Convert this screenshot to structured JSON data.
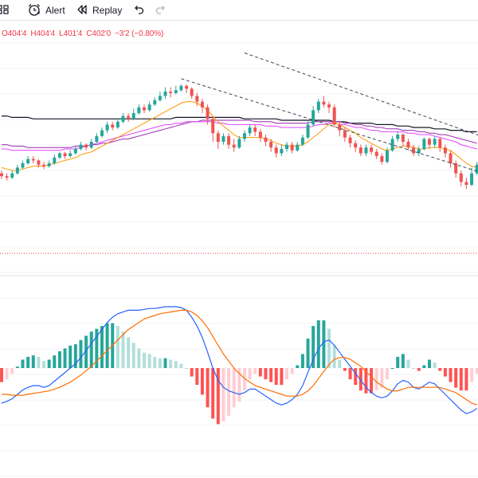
{
  "toolbar": {
    "alert_label": "Alert",
    "replay_label": "Replay",
    "icons": [
      "grid-icon",
      "alarm-clock-icon",
      "replay-icon",
      "undo-icon",
      "redo-icon"
    ]
  },
  "legend": {
    "open": "O404'4",
    "high": "H404'4",
    "low": "L401'4",
    "close": "C402'0",
    "change": "−3'2 (−0.80%)"
  },
  "colors": {
    "up": "#26a69a",
    "down": "#ef5350",
    "hist_up_strong": "#26a69a",
    "hist_up_weak": "#b2dfdb",
    "hist_down_strong": "#ff5252",
    "hist_down_weak": "#ffcdd2",
    "macd_line": "#2962ff",
    "signal_line": "#ff6d00",
    "ma_short": "#ff9800",
    "ma_mid": "#9c27b0",
    "ma_magenta": "#e040fb",
    "ma_long": "#131722",
    "grid": "#f0f3fa",
    "trendline": "#434651",
    "price_line": "#f23645"
  },
  "chart_data": {
    "type": "candlestick",
    "note_values": "normalized price levels 0-100 (no axis printed)",
    "candles": [
      [
        38,
        36,
        40,
        34
      ],
      [
        36,
        35,
        38,
        33
      ],
      [
        35,
        38,
        40,
        34
      ],
      [
        38,
        42,
        44,
        37
      ],
      [
        42,
        45,
        47,
        41
      ],
      [
        45,
        48,
        50,
        44
      ],
      [
        48,
        47,
        50,
        45
      ],
      [
        47,
        44,
        48,
        42
      ],
      [
        44,
        43,
        46,
        41
      ],
      [
        43,
        45,
        47,
        42
      ],
      [
        45,
        49,
        51,
        44
      ],
      [
        49,
        52,
        53,
        48
      ],
      [
        52,
        50,
        53,
        48
      ],
      [
        50,
        52,
        54,
        49
      ],
      [
        52,
        55,
        57,
        51
      ],
      [
        55,
        58,
        60,
        54
      ],
      [
        58,
        56,
        59,
        54
      ],
      [
        56,
        60,
        62,
        55
      ],
      [
        60,
        64,
        66,
        59
      ],
      [
        64,
        68,
        70,
        63
      ],
      [
        68,
        72,
        74,
        66
      ],
      [
        72,
        70,
        74,
        68
      ],
      [
        70,
        74,
        76,
        69
      ],
      [
        74,
        78,
        80,
        73
      ],
      [
        78,
        76,
        80,
        74
      ],
      [
        76,
        80,
        83,
        75
      ],
      [
        80,
        84,
        86,
        79
      ],
      [
        84,
        82,
        86,
        80
      ],
      [
        82,
        86,
        88,
        81
      ],
      [
        86,
        89,
        91,
        85
      ],
      [
        89,
        92,
        95,
        88
      ],
      [
        92,
        95,
        98,
        90
      ],
      [
        95,
        94,
        98,
        91
      ],
      [
        94,
        96,
        99,
        93
      ],
      [
        96,
        99,
        100,
        95
      ],
      [
        99,
        97,
        100,
        94
      ],
      [
        97,
        92,
        98,
        90
      ],
      [
        92,
        88,
        94,
        85
      ],
      [
        88,
        84,
        90,
        80
      ],
      [
        84,
        76,
        86,
        72
      ],
      [
        76,
        66,
        78,
        60
      ],
      [
        66,
        60,
        68,
        55
      ],
      [
        60,
        64,
        66,
        58
      ],
      [
        64,
        58,
        66,
        55
      ],
      [
        58,
        56,
        62,
        53
      ],
      [
        56,
        62,
        64,
        55
      ],
      [
        62,
        66,
        68,
        60
      ],
      [
        66,
        70,
        72,
        64
      ],
      [
        70,
        67,
        72,
        64
      ],
      [
        67,
        63,
        69,
        60
      ],
      [
        63,
        60,
        65,
        57
      ],
      [
        60,
        56,
        62,
        53
      ],
      [
        56,
        52,
        58,
        49
      ],
      [
        52,
        55,
        58,
        50
      ],
      [
        55,
        58,
        60,
        53
      ],
      [
        58,
        54,
        60,
        52
      ],
      [
        54,
        58,
        60,
        53
      ],
      [
        58,
        63,
        65,
        57
      ],
      [
        63,
        72,
        75,
        62
      ],
      [
        72,
        82,
        85,
        71
      ],
      [
        82,
        88,
        90,
        80
      ],
      [
        88,
        86,
        92,
        84
      ],
      [
        86,
        84,
        88,
        80
      ],
      [
        84,
        72,
        86,
        70
      ],
      [
        72,
        68,
        74,
        64
      ],
      [
        68,
        63,
        70,
        60
      ],
      [
        63,
        59,
        65,
        56
      ],
      [
        59,
        56,
        61,
        53
      ],
      [
        56,
        52,
        58,
        50
      ],
      [
        52,
        56,
        58,
        50
      ],
      [
        56,
        53,
        58,
        51
      ],
      [
        53,
        50,
        55,
        48
      ],
      [
        50,
        46,
        52,
        44
      ],
      [
        46,
        54,
        56,
        45
      ],
      [
        54,
        62,
        64,
        53
      ],
      [
        62,
        65,
        67,
        60
      ],
      [
        65,
        60,
        66,
        57
      ],
      [
        60,
        56,
        62,
        54
      ],
      [
        56,
        52,
        58,
        50
      ],
      [
        52,
        55,
        57,
        50
      ],
      [
        55,
        62,
        63,
        54
      ],
      [
        62,
        58,
        63,
        55
      ],
      [
        58,
        62,
        64,
        56
      ],
      [
        62,
        56,
        63,
        53
      ],
      [
        56,
        52,
        58,
        49
      ],
      [
        52,
        45,
        54,
        42
      ],
      [
        45,
        38,
        47,
        35
      ],
      [
        38,
        32,
        40,
        29
      ],
      [
        32,
        30,
        35,
        27
      ],
      [
        30,
        38,
        42,
        29
      ],
      [
        38,
        44,
        46,
        37
      ]
    ],
    "moving_averages": [
      {
        "color": "ma_long",
        "values": [
          78,
          78,
          77,
          77,
          77,
          77,
          76,
          76,
          76,
          76,
          76,
          76,
          76,
          76,
          76,
          76,
          76,
          76,
          76,
          76,
          76,
          76,
          76,
          76,
          76,
          76,
          76,
          76,
          76,
          76,
          76,
          76,
          76,
          77,
          77,
          77,
          77,
          77,
          77,
          77,
          77,
          77,
          77,
          77,
          77,
          77,
          76,
          76,
          76,
          76,
          76,
          76,
          76,
          75,
          75,
          75,
          75,
          75,
          75,
          75,
          75,
          75,
          75,
          74,
          74,
          74,
          73,
          73,
          73,
          73,
          73,
          72,
          72,
          72,
          72,
          71,
          71,
          71,
          70,
          70,
          70,
          70,
          69,
          69,
          69,
          68,
          68,
          68,
          67,
          67,
          67
        ]
      },
      {
        "color": "ma_mid",
        "values": [
          58,
          58,
          57,
          57,
          57,
          56,
          56,
          56,
          56,
          56,
          56,
          56,
          56,
          56,
          57,
          57,
          57,
          58,
          58,
          59,
          59,
          60,
          61,
          62,
          62,
          63,
          64,
          65,
          66,
          67,
          68,
          69,
          70,
          71,
          72,
          73,
          74,
          74,
          75,
          75,
          75,
          75,
          75,
          75,
          75,
          75,
          75,
          75,
          74,
          74,
          74,
          74,
          73,
          73,
          73,
          73,
          73,
          73,
          73,
          74,
          74,
          74,
          74,
          74,
          74,
          73,
          73,
          72,
          72,
          71,
          71,
          70,
          70,
          69,
          69,
          69,
          68,
          68,
          68,
          67,
          67,
          66,
          66,
          65,
          65,
          64,
          63,
          62,
          61,
          60,
          59
        ]
      },
      {
        "color": "ma_magenta",
        "values": [
          55,
          55,
          54,
          54,
          54,
          54,
          54,
          54,
          54,
          54,
          54,
          54,
          55,
          55,
          55,
          56,
          57,
          58,
          59,
          60,
          61,
          62,
          63,
          64,
          65,
          66,
          67,
          68,
          69,
          70,
          71,
          72,
          72,
          73,
          73,
          74,
          74,
          74,
          74,
          74,
          74,
          73,
          73,
          72,
          72,
          72,
          72,
          72,
          72,
          72,
          71,
          71,
          71,
          70,
          70,
          70,
          70,
          70,
          70,
          71,
          72,
          72,
          73,
          73,
          72,
          72,
          71,
          70,
          70,
          69,
          68,
          68,
          67,
          67,
          67,
          67,
          67,
          66,
          66,
          65,
          65,
          65,
          64,
          63,
          62,
          61,
          60,
          58,
          57,
          56,
          55
        ]
      },
      {
        "color": "ma_short",
        "values": [
          42,
          41,
          40,
          40,
          41,
          42,
          43,
          43,
          43,
          44,
          45,
          46,
          47,
          48,
          49,
          51,
          52,
          53,
          55,
          57,
          59,
          61,
          63,
          65,
          67,
          69,
          71,
          73,
          75,
          77,
          79,
          81,
          83,
          85,
          87,
          88,
          88,
          87,
          85,
          82,
          78,
          74,
          71,
          68,
          65,
          63,
          63,
          63,
          63,
          63,
          62,
          61,
          59,
          58,
          57,
          57,
          57,
          58,
          60,
          63,
          66,
          69,
          72,
          73,
          72,
          70,
          68,
          66,
          63,
          61,
          59,
          57,
          55,
          54,
          55,
          56,
          57,
          57,
          56,
          55,
          55,
          56,
          56,
          56,
          55,
          54,
          51,
          48,
          45,
          43,
          42
        ]
      }
    ],
    "trendlines": [
      {
        "from_index": 34,
        "from_value": 104,
        "to_index": 100,
        "to_value": 28
      },
      {
        "from_index": 46,
        "from_value": 122,
        "to_index": 100,
        "to_value": 52
      }
    ],
    "macd": {
      "macd_line": [
        -40,
        -38,
        -35,
        -30,
        -25,
        -22,
        -20,
        -20,
        -22,
        -20,
        -15,
        -10,
        -5,
        0,
        5,
        12,
        20,
        28,
        36,
        44,
        52,
        58,
        62,
        64,
        66,
        66,
        66,
        67,
        68,
        68,
        69,
        70,
        70,
        70,
        69,
        66,
        58,
        48,
        35,
        18,
        0,
        -14,
        -22,
        -26,
        -28,
        -30,
        -28,
        -24,
        -24,
        -28,
        -32,
        -36,
        -40,
        -42,
        -40,
        -36,
        -30,
        -20,
        -5,
        10,
        22,
        30,
        32,
        26,
        18,
        10,
        2,
        -6,
        -14,
        -22,
        -28,
        -32,
        -34,
        -32,
        -26,
        -18,
        -14,
        -16,
        -22,
        -24,
        -20,
        -16,
        -18,
        -24,
        -30,
        -36,
        -42,
        -48,
        -52,
        -50,
        -46
      ],
      "signal_line": [
        -30,
        -30,
        -31,
        -31,
        -31,
        -30,
        -29,
        -28,
        -27,
        -26,
        -24,
        -22,
        -19,
        -16,
        -12,
        -8,
        -3,
        2,
        8,
        14,
        20,
        26,
        32,
        38,
        44,
        48,
        52,
        56,
        58,
        60,
        62,
        63,
        64,
        65,
        66,
        66,
        64,
        60,
        54,
        46,
        36,
        26,
        16,
        8,
        0,
        -6,
        -12,
        -16,
        -20,
        -22,
        -24,
        -26,
        -28,
        -30,
        -32,
        -32,
        -32,
        -30,
        -26,
        -20,
        -12,
        -4,
        4,
        10,
        12,
        12,
        10,
        6,
        2,
        -4,
        -10,
        -16,
        -20,
        -24,
        -26,
        -26,
        -24,
        -22,
        -22,
        -22,
        -22,
        -22,
        -22,
        -22,
        -24,
        -26,
        -28,
        -32,
        -36,
        -40,
        -42
      ]
    }
  }
}
